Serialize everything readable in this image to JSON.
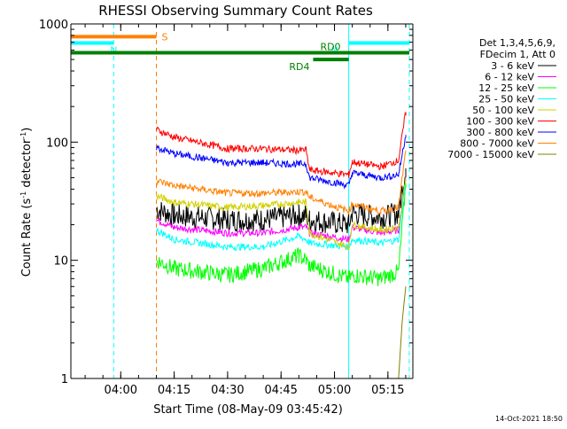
{
  "chart_data": {
    "type": "line",
    "title": "RHESSI Observing Summary Count Rates",
    "xlabel": "Start Time (08-May-09 03:45:42)",
    "ylabel_main": "Count Rate (s",
    "ylabel_sup1": "-1",
    "ylabel_mid": " detector",
    "ylabel_sup2": "-1",
    "ylabel_end": ")",
    "y_scale": "log",
    "ylim": [
      1,
      1000
    ],
    "xlim": [
      "03:46",
      "05:22"
    ],
    "x_ticks": [
      "04:00",
      "04:15",
      "04:30",
      "04:45",
      "05:00",
      "05:15"
    ],
    "y_ticks": [
      "1",
      "10",
      "100",
      "1000"
    ],
    "legend_placement": "right",
    "legend_header": [
      "Det 1,3,4,5,6,9,",
      "FDecim 1, Att 0"
    ],
    "series": [
      {
        "name": "3 - 6 keV",
        "color": "#000000",
        "points": [
          [
            "04:10",
            27
          ],
          [
            "04:15",
            24
          ],
          [
            "04:30",
            22
          ],
          [
            "04:40",
            22
          ],
          [
            "04:50",
            24
          ],
          [
            "04:52",
            24
          ],
          [
            "04:53",
            22
          ],
          [
            "05:04",
            20
          ],
          [
            "05:05",
            25
          ],
          [
            "05:13",
            23
          ],
          [
            "05:18",
            25
          ],
          [
            "05:20",
            60
          ]
        ]
      },
      {
        "name": "6 - 12 keV",
        "color": "#ff00ff",
        "points": [
          [
            "04:10",
            22
          ],
          [
            "04:15",
            19
          ],
          [
            "04:30",
            17
          ],
          [
            "04:40",
            17
          ],
          [
            "04:50",
            19
          ],
          [
            "04:52",
            19
          ],
          [
            "04:53",
            17
          ],
          [
            "05:04",
            15
          ],
          [
            "05:05",
            19
          ],
          [
            "05:13",
            17
          ],
          [
            "05:18",
            18
          ],
          [
            "05:20",
            50
          ]
        ]
      },
      {
        "name": "12 - 25 keV",
        "color": "#00ff00",
        "points": [
          [
            "04:10",
            10
          ],
          [
            "04:15",
            8.5
          ],
          [
            "04:30",
            7.5
          ],
          [
            "04:40",
            8.5
          ],
          [
            "04:50",
            11
          ],
          [
            "04:52",
            10
          ],
          [
            "04:53",
            9
          ],
          [
            "05:04",
            7
          ],
          [
            "05:05",
            7.5
          ],
          [
            "05:13",
            7
          ],
          [
            "05:18",
            8
          ],
          [
            "05:20",
            45
          ]
        ]
      },
      {
        "name": "25 - 50 keV",
        "color": "#00ffff",
        "points": [
          [
            "04:10",
            18
          ],
          [
            "04:15",
            15
          ],
          [
            "04:30",
            13
          ],
          [
            "04:40",
            13
          ],
          [
            "04:50",
            16
          ],
          [
            "04:52",
            15
          ],
          [
            "04:53",
            14
          ],
          [
            "05:04",
            13
          ],
          [
            "05:05",
            15
          ],
          [
            "05:13",
            14
          ],
          [
            "05:18",
            15
          ],
          [
            "05:20",
            48
          ]
        ]
      },
      {
        "name": "50 - 100 keV",
        "color": "#d0d000",
        "points": [
          [
            "04:10",
            35
          ],
          [
            "04:15",
            31
          ],
          [
            "04:30",
            28
          ],
          [
            "04:40",
            29
          ],
          [
            "04:50",
            31
          ],
          [
            "04:52",
            31
          ],
          [
            "04:53",
            17
          ],
          [
            "05:04",
            13
          ],
          [
            "05:05",
            20
          ],
          [
            "05:13",
            18
          ],
          [
            "05:18",
            19
          ],
          [
            "05:20",
            50
          ]
        ]
      },
      {
        "name": "100 - 300 keV",
        "color": "#ff0000",
        "points": [
          [
            "04:10",
            128
          ],
          [
            "04:15",
            110
          ],
          [
            "04:30",
            88
          ],
          [
            "04:40",
            88
          ],
          [
            "04:50",
            85
          ],
          [
            "04:52",
            86
          ],
          [
            "04:53",
            58
          ],
          [
            "05:04",
            53
          ],
          [
            "05:05",
            68
          ],
          [
            "05:13",
            62
          ],
          [
            "05:18",
            70
          ],
          [
            "05:20",
            180
          ]
        ]
      },
      {
        "name": "300 - 800 keV",
        "color": "#0000ff",
        "points": [
          [
            "04:10",
            90
          ],
          [
            "04:15",
            80
          ],
          [
            "04:30",
            67
          ],
          [
            "04:40",
            67
          ],
          [
            "04:50",
            65
          ],
          [
            "04:52",
            66
          ],
          [
            "04:53",
            50
          ],
          [
            "05:04",
            43
          ],
          [
            "05:05",
            55
          ],
          [
            "05:13",
            50
          ],
          [
            "05:18",
            53
          ],
          [
            "05:20",
            115
          ]
        ]
      },
      {
        "name": "800 - 7000 keV",
        "color": "#ff8000",
        "points": [
          [
            "04:10",
            47
          ],
          [
            "04:15",
            43
          ],
          [
            "04:30",
            37
          ],
          [
            "04:40",
            37
          ],
          [
            "04:50",
            38
          ],
          [
            "04:52",
            38
          ],
          [
            "04:53",
            34
          ],
          [
            "05:04",
            26
          ],
          [
            "05:05",
            30
          ],
          [
            "05:13",
            26
          ],
          [
            "05:18",
            28
          ],
          [
            "05:20",
            85
          ]
        ]
      },
      {
        "name": "7000 - 15000 keV",
        "color": "#808000",
        "points": [
          [
            "05:18",
            1
          ],
          [
            "05:19",
            3
          ],
          [
            "05:20",
            6
          ]
        ]
      }
    ],
    "annotations": [
      {
        "label": "S",
        "color": "#ff8000",
        "level": 780,
        "start": "03:46",
        "end": "04:10"
      },
      {
        "label": "N",
        "color": "#00ffff",
        "level": 690,
        "start": "03:46",
        "end": "03:58"
      },
      {
        "label": "N",
        "color": "#00ffff",
        "level": 690,
        "start": "05:04",
        "end": "05:21"
      },
      {
        "label": "RD0",
        "color": "#008000",
        "level": 570,
        "start": "03:46",
        "end": "05:21"
      },
      {
        "label": "RD4",
        "color": "#008000",
        "level": 500,
        "start": "04:54",
        "end": "05:04"
      }
    ],
    "vertical_markers": [
      {
        "time": "03:46",
        "color": "#00ffff",
        "style": "solid"
      },
      {
        "time": "03:58",
        "color": "#00ffff",
        "style": "dashed"
      },
      {
        "time": "04:10",
        "color": "#ff8000",
        "style": "dashed"
      },
      {
        "time": "05:04",
        "color": "#00ffff",
        "style": "solid"
      },
      {
        "time": "05:21",
        "color": "#00ffff",
        "style": "dashed"
      }
    ],
    "footer_date": "14-Oct-2021 18:50"
  }
}
